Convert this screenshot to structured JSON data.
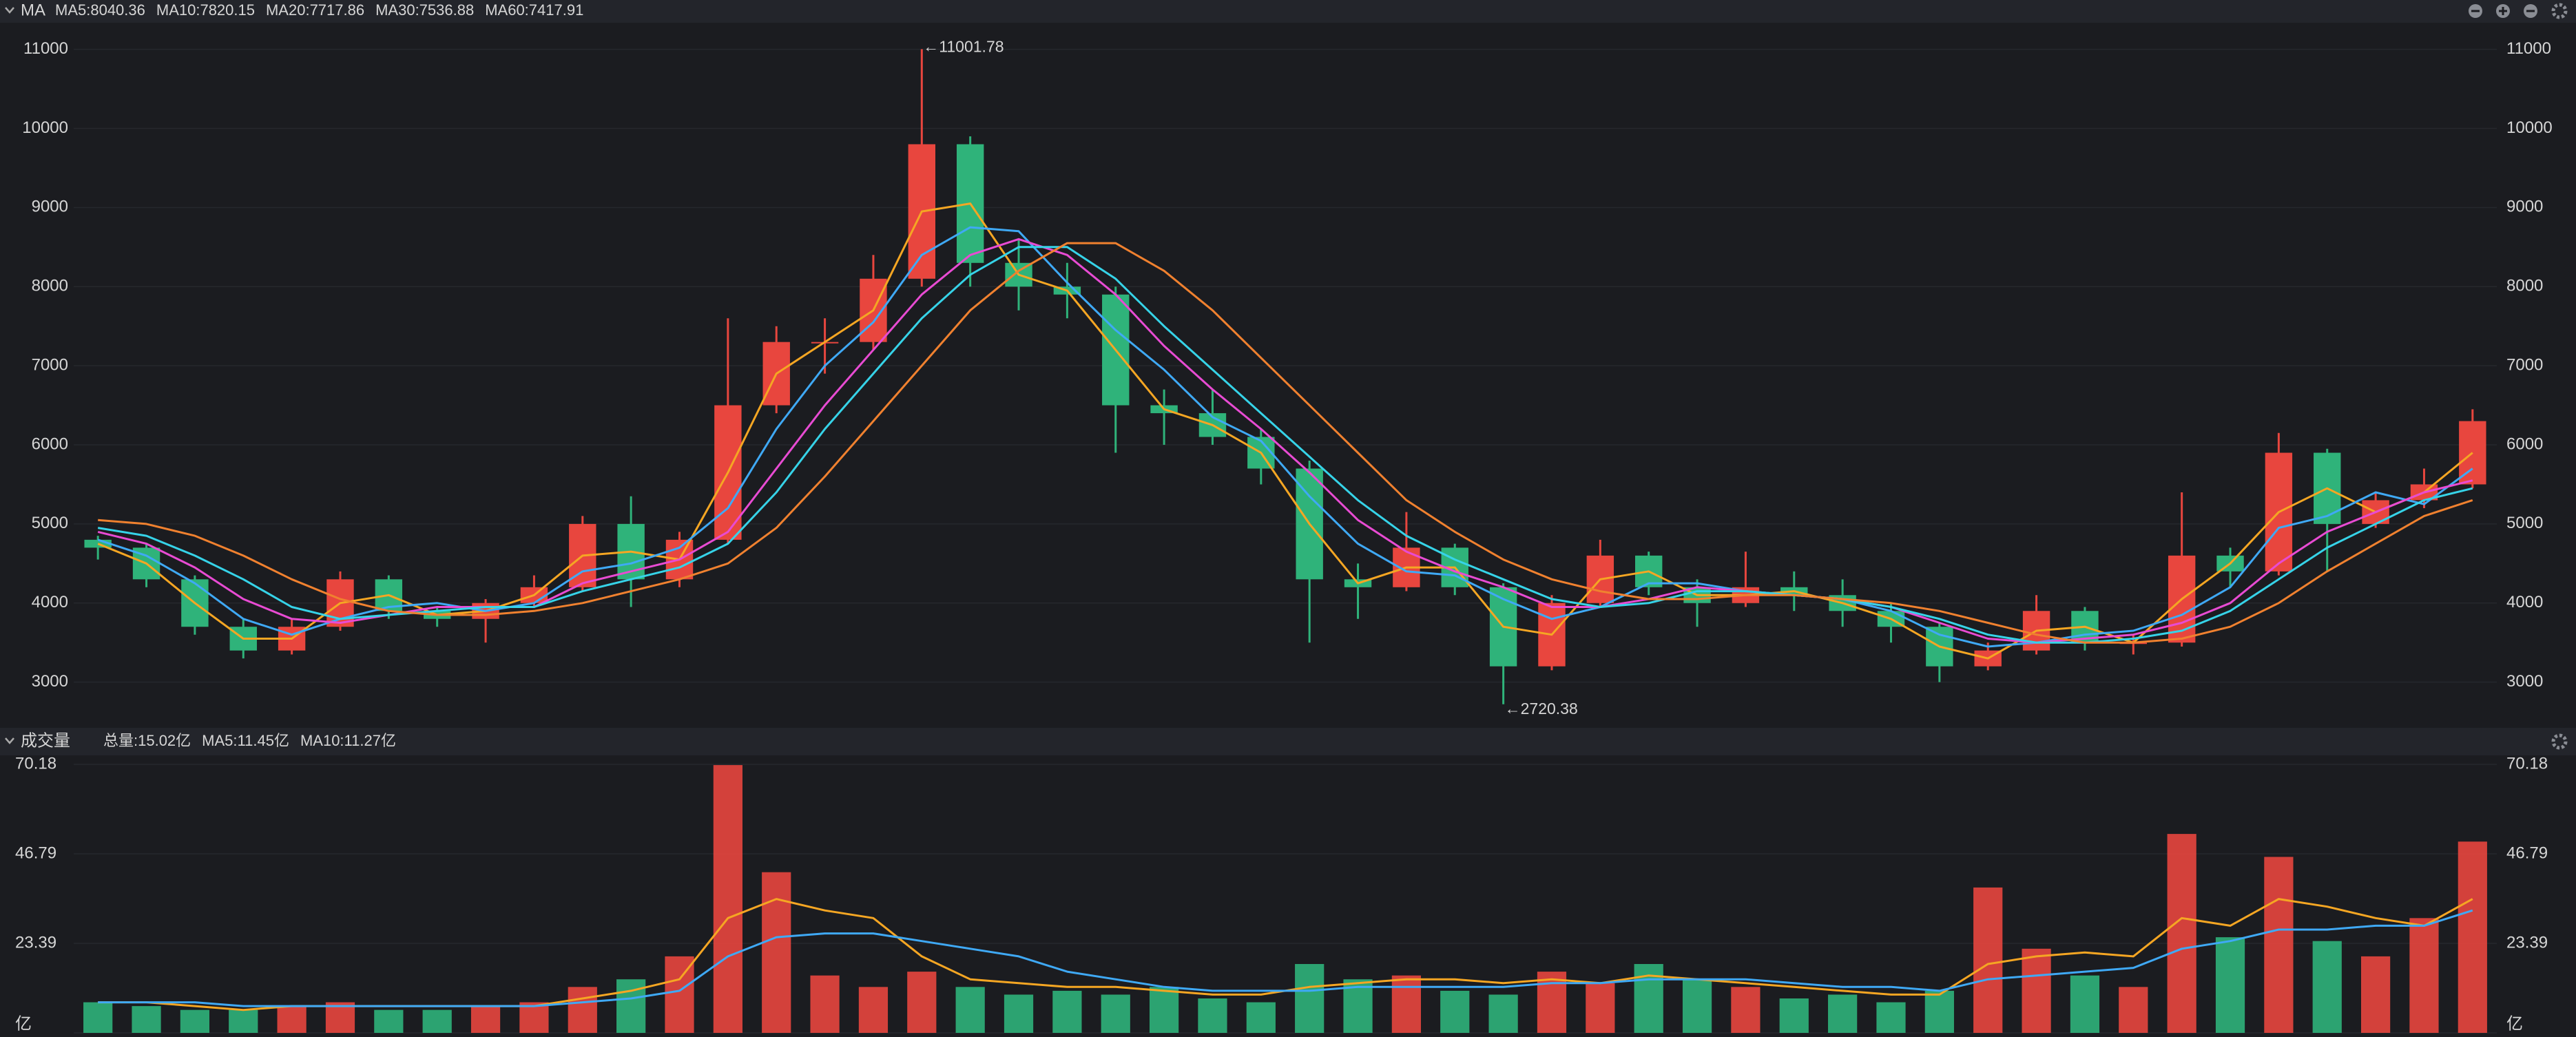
{
  "chart_data": [
    {
      "type": "candlestick",
      "title": "MA",
      "up_color": "#e8463e",
      "down_color": "#2fb37a",
      "ylim": [
        2440,
        11310
      ],
      "yticks": [
        3000,
        4000,
        5000,
        6000,
        7000,
        8000,
        9000,
        10000,
        11000
      ],
      "grid": true,
      "ohlc": [
        [
          4800,
          4850,
          4550,
          4700
        ],
        [
          4700,
          4750,
          4200,
          4300
        ],
        [
          4300,
          4350,
          3600,
          3700
        ],
        [
          3700,
          3800,
          3300,
          3400
        ],
        [
          3400,
          3800,
          3350,
          3700
        ],
        [
          3700,
          4400,
          3650,
          4300
        ],
        [
          4300,
          4350,
          3800,
          3900
        ],
        [
          3900,
          3950,
          3700,
          3800
        ],
        [
          3800,
          4050,
          3500,
          4000
        ],
        [
          4000,
          4350,
          3950,
          4200
        ],
        [
          4200,
          5100,
          4150,
          5000
        ],
        [
          5000,
          5350,
          3950,
          4300
        ],
        [
          4300,
          4900,
          4200,
          4800
        ],
        [
          4800,
          7600,
          4750,
          6500
        ],
        [
          6500,
          7500,
          6400,
          7300
        ],
        [
          7300,
          7600,
          6900,
          7300
        ],
        [
          7300,
          8400,
          7200,
          8100
        ],
        [
          8100,
          11001.78,
          8000,
          9800
        ],
        [
          9800,
          9900,
          8000,
          8300
        ],
        [
          8300,
          8600,
          7700,
          8000
        ],
        [
          8000,
          8300,
          7600,
          7900
        ],
        [
          7900,
          8000,
          5900,
          6500
        ],
        [
          6500,
          6700,
          6000,
          6400
        ],
        [
          6400,
          6700,
          6000,
          6100
        ],
        [
          6100,
          6200,
          5500,
          5700
        ],
        [
          5700,
          5800,
          3500,
          4300
        ],
        [
          4300,
          4500,
          3800,
          4200
        ],
        [
          4200,
          5150,
          4150,
          4700
        ],
        [
          4700,
          4750,
          4100,
          4200
        ],
        [
          4200,
          4250,
          2720.38,
          3200
        ],
        [
          3200,
          4100,
          3150,
          4000
        ],
        [
          4000,
          4800,
          3950,
          4600
        ],
        [
          4600,
          4650,
          4100,
          4200
        ],
        [
          4200,
          4300,
          3700,
          4000
        ],
        [
          4000,
          4650,
          3950,
          4200
        ],
        [
          4200,
          4400,
          3900,
          4100
        ],
        [
          4100,
          4300,
          3700,
          3900
        ],
        [
          3900,
          4000,
          3500,
          3700
        ],
        [
          3700,
          3750,
          3000,
          3200
        ],
        [
          3200,
          3500,
          3150,
          3400
        ],
        [
          3400,
          4100,
          3350,
          3900
        ],
        [
          3900,
          3950,
          3400,
          3500
        ],
        [
          3500,
          3600,
          3350,
          3500
        ],
        [
          3500,
          5400,
          3450,
          4600
        ],
        [
          4600,
          4700,
          4200,
          4400
        ],
        [
          4400,
          6150,
          4350,
          5900
        ],
        [
          5900,
          5950,
          4400,
          5000
        ],
        [
          5000,
          5400,
          4950,
          5300
        ],
        [
          5300,
          5700,
          5200,
          5500
        ],
        [
          5500,
          6450,
          5450,
          6300
        ]
      ],
      "series": [
        {
          "name": "MA5:8040.36",
          "color": "#f5a623",
          "values": [
            4750,
            4500,
            4000,
            3550,
            3550,
            4000,
            4100,
            3850,
            3900,
            4100,
            4600,
            4650,
            4550,
            5650,
            6900,
            7300,
            7700,
            8950,
            9050,
            8150,
            7950,
            7200,
            6450,
            6250,
            5900,
            5000,
            4250,
            4450,
            4450,
            3700,
            3600,
            4300,
            4400,
            4100,
            4100,
            4150,
            4000,
            3800,
            3450,
            3300,
            3650,
            3700,
            3500,
            4050,
            4500,
            5150,
            5450,
            5150,
            5400,
            5900
          ]
        },
        {
          "name": "MA10:7820.15",
          "color": "#3fa9f5",
          "values": [
            4800,
            4600,
            4250,
            3800,
            3600,
            3800,
            3950,
            4000,
            3900,
            4000,
            4400,
            4500,
            4700,
            5200,
            6200,
            7000,
            7550,
            8400,
            8750,
            8700,
            8050,
            7450,
            6950,
            6350,
            6050,
            5350,
            4750,
            4400,
            4350,
            4050,
            3800,
            3950,
            4250,
            4250,
            4150,
            4100,
            4050,
            3900,
            3600,
            3450,
            3500,
            3600,
            3650,
            3850,
            4200,
            4950,
            5100,
            5400,
            5250,
            5700
          ]
        },
        {
          "name": "MA20:7717.86",
          "color": "#e84bd3",
          "values": [
            4900,
            4750,
            4450,
            4050,
            3800,
            3750,
            3850,
            3950,
            3950,
            3950,
            4250,
            4400,
            4550,
            4900,
            5700,
            6500,
            7200,
            7900,
            8400,
            8600,
            8400,
            7900,
            7250,
            6700,
            6200,
            5650,
            5050,
            4650,
            4400,
            4200,
            3950,
            3950,
            4050,
            4200,
            4150,
            4100,
            4050,
            3950,
            3750,
            3550,
            3500,
            3550,
            3600,
            3750,
            4000,
            4500,
            4900,
            5150,
            5400,
            5550
          ]
        },
        {
          "name": "MA30:7536.88",
          "color": "#36d3e8",
          "values": [
            4950,
            4850,
            4600,
            4300,
            3950,
            3800,
            3850,
            3900,
            3950,
            3950,
            4150,
            4300,
            4450,
            4750,
            5400,
            6200,
            6900,
            7600,
            8150,
            8500,
            8500,
            8100,
            7500,
            6950,
            6400,
            5850,
            5300,
            4850,
            4550,
            4300,
            4050,
            3950,
            4000,
            4150,
            4150,
            4100,
            4050,
            3950,
            3800,
            3600,
            3500,
            3500,
            3550,
            3650,
            3900,
            4300,
            4700,
            5000,
            5300,
            5450
          ]
        },
        {
          "name": "MA60:7417.91",
          "color": "#f0812f",
          "values": [
            5050,
            5000,
            4850,
            4600,
            4300,
            4050,
            3900,
            3850,
            3850,
            3900,
            4000,
            4150,
            4300,
            4500,
            4950,
            5600,
            6300,
            7000,
            7700,
            8200,
            8550,
            8550,
            8200,
            7700,
            7100,
            6500,
            5900,
            5300,
            4900,
            4550,
            4300,
            4150,
            4050,
            4050,
            4100,
            4100,
            4050,
            4000,
            3900,
            3750,
            3600,
            3500,
            3500,
            3550,
            3700,
            4000,
            4400,
            4750,
            5100,
            5300
          ]
        }
      ],
      "annotations": [
        {
          "value": 11001.78,
          "label": "←11001.78",
          "at": "high"
        },
        {
          "value": 2720.38,
          "label": "←2720.38",
          "at": "low"
        }
      ]
    },
    {
      "type": "bar",
      "title": "成交量",
      "total_label": "总量:15.02亿",
      "total_color": "#e8463e",
      "ylim": [
        0,
        72
      ],
      "yticks": [
        {
          "value": 0,
          "label": "亿"
        },
        23.39,
        46.79,
        70.18
      ],
      "grid": true,
      "values": [
        8,
        7,
        6,
        6,
        7,
        8,
        6,
        6,
        7,
        8,
        12,
        14,
        20,
        70,
        42,
        15,
        12,
        16,
        12,
        10,
        11,
        10,
        12,
        9,
        8,
        18,
        14,
        15,
        11,
        10,
        16,
        13,
        18,
        14,
        12,
        9,
        10,
        8,
        11,
        38,
        22,
        15,
        12,
        52,
        25,
        46,
        24,
        20,
        30,
        50
      ],
      "series": [
        {
          "name": "MA5:11.45亿",
          "color": "#f5a623",
          "values": [
            8,
            8,
            7,
            6,
            7,
            7,
            7,
            7,
            7,
            7,
            9,
            11,
            14,
            30,
            35,
            32,
            30,
            20,
            14,
            13,
            12,
            12,
            11,
            10,
            10,
            12,
            13,
            14,
            14,
            13,
            14,
            13,
            15,
            14,
            13,
            12,
            11,
            10,
            10,
            18,
            20,
            21,
            20,
            30,
            28,
            35,
            33,
            30,
            28,
            35
          ]
        },
        {
          "name": "MA10:11.27亿",
          "color": "#3fa9f5",
          "values": [
            8,
            8,
            8,
            7,
            7,
            7,
            7,
            7,
            7,
            7,
            8,
            9,
            11,
            20,
            25,
            26,
            26,
            24,
            22,
            20,
            16,
            14,
            12,
            11,
            11,
            11,
            12,
            12,
            12,
            12,
            13,
            13,
            14,
            14,
            14,
            13,
            12,
            12,
            11,
            14,
            15,
            16,
            17,
            22,
            24,
            27,
            27,
            28,
            28,
            32
          ]
        }
      ]
    }
  ]
}
